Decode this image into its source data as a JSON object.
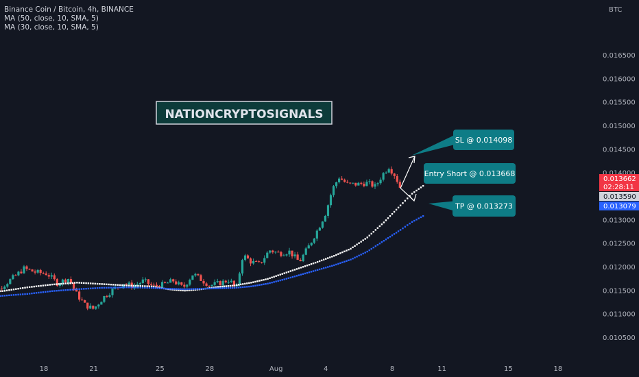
{
  "legend": {
    "symbol": "Binance Coin / Bitcoin, 4h, BINANCE",
    "ma1": "MA (50, close, 10, SMA, 5)",
    "ma2": "MA (30, close, 10, SMA, 5)"
  },
  "currency": "BTC",
  "watermark": "NATIONCRYPTOSIGNALS",
  "colors": {
    "background": "#131722",
    "up": "#26a69a",
    "down": "#ef5350",
    "ma50": "#ffffff",
    "ma30": "#2962ff",
    "annotation": "#0e7c86"
  },
  "chart_data": {
    "type": "candlestick",
    "y_range": [
      0.0103,
      0.017
    ],
    "y_ticks": [
      "0.016500",
      "0.016000",
      "0.015500",
      "0.015000",
      "0.014500",
      "0.014000",
      "0.013500",
      "0.013000",
      "0.012500",
      "0.012000",
      "0.011500",
      "0.011000",
      "0.010500"
    ],
    "x_ticks": [
      {
        "label": "18",
        "day": 18
      },
      {
        "label": "21",
        "day": 21
      },
      {
        "label": "25",
        "day": 25
      },
      {
        "label": "28",
        "day": 28
      },
      {
        "label": "Aug",
        "day": 32
      },
      {
        "label": "4",
        "day": 35
      },
      {
        "label": "8",
        "day": 39
      },
      {
        "label": "11",
        "day": 42
      },
      {
        "label": "15",
        "day": 46
      },
      {
        "label": "18",
        "day": 49
      }
    ],
    "price_path": [
      [
        14.3,
        0.0114
      ],
      [
        15.2,
        0.0115
      ],
      [
        16.2,
        0.01178
      ],
      [
        16.8,
        0.01196
      ],
      [
        17.5,
        0.01188
      ],
      [
        18.2,
        0.01185
      ],
      [
        18.8,
        0.01165
      ],
      [
        19.5,
        0.01175
      ],
      [
        20.0,
        0.0114
      ],
      [
        20.5,
        0.01118
      ],
      [
        21.0,
        0.0111
      ],
      [
        21.6,
        0.01135
      ],
      [
        22.2,
        0.01152
      ],
      [
        22.8,
        0.01165
      ],
      [
        23.4,
        0.01158
      ],
      [
        24.0,
        0.0117
      ],
      [
        24.6,
        0.01158
      ],
      [
        25.2,
        0.01162
      ],
      [
        25.8,
        0.0117
      ],
      [
        26.4,
        0.01155
      ],
      [
        27.0,
        0.01185
      ],
      [
        27.5,
        0.01172
      ],
      [
        28.0,
        0.0116
      ],
      [
        28.6,
        0.01165
      ],
      [
        29.2,
        0.01172
      ],
      [
        29.6,
        0.0115
      ],
      [
        30.0,
        0.01225
      ],
      [
        30.5,
        0.0121
      ],
      [
        31.0,
        0.01205
      ],
      [
        31.6,
        0.01235
      ],
      [
        32.2,
        0.01228
      ],
      [
        32.8,
        0.01232
      ],
      [
        33.4,
        0.0121
      ],
      [
        34.0,
        0.01245
      ],
      [
        34.6,
        0.01285
      ],
      [
        35.0,
        0.01315
      ],
      [
        35.4,
        0.01365
      ],
      [
        35.8,
        0.0139
      ],
      [
        36.3,
        0.01375
      ],
      [
        36.9,
        0.01375
      ],
      [
        37.5,
        0.01378
      ],
      [
        38.0,
        0.0137
      ],
      [
        38.4,
        0.01395
      ],
      [
        38.8,
        0.01412
      ],
      [
        39.2,
        0.01392
      ],
      [
        39.5,
        0.01366
      ]
    ],
    "series": [
      {
        "name": "MA (50, close, 10, SMA, 5)",
        "points": [
          [
            14.0,
            0.01145
          ],
          [
            15.5,
            0.01148
          ],
          [
            17.0,
            0.01156
          ],
          [
            18.5,
            0.01162
          ],
          [
            20.0,
            0.01166
          ],
          [
            21.5,
            0.01163
          ],
          [
            23.0,
            0.0116
          ],
          [
            24.5,
            0.01158
          ],
          [
            25.5,
            0.01152
          ],
          [
            26.5,
            0.01149
          ],
          [
            27.5,
            0.01152
          ],
          [
            28.5,
            0.01157
          ],
          [
            29.5,
            0.0116
          ],
          [
            30.5,
            0.01166
          ],
          [
            31.5,
            0.01174
          ],
          [
            32.5,
            0.01186
          ],
          [
            33.5,
            0.01198
          ],
          [
            34.5,
            0.0121
          ],
          [
            35.5,
            0.01223
          ],
          [
            36.5,
            0.01238
          ],
          [
            37.5,
            0.01262
          ],
          [
            38.5,
            0.01294
          ],
          [
            39.5,
            0.0133
          ],
          [
            40.2,
            0.01355
          ],
          [
            41.0,
            0.01375
          ]
        ]
      },
      {
        "name": "MA (30, close, 10, SMA, 5)",
        "points": [
          [
            14.0,
            0.01133
          ],
          [
            15.5,
            0.01138
          ],
          [
            17.0,
            0.01142
          ],
          [
            18.5,
            0.01148
          ],
          [
            20.0,
            0.01152
          ],
          [
            21.5,
            0.01155
          ],
          [
            23.0,
            0.01156
          ],
          [
            24.5,
            0.01155
          ],
          [
            25.5,
            0.01153
          ],
          [
            26.5,
            0.01152
          ],
          [
            27.5,
            0.01153
          ],
          [
            28.5,
            0.01154
          ],
          [
            29.5,
            0.01155
          ],
          [
            30.5,
            0.01158
          ],
          [
            31.5,
            0.01164
          ],
          [
            32.5,
            0.01173
          ],
          [
            33.5,
            0.01183
          ],
          [
            34.5,
            0.01193
          ],
          [
            35.5,
            0.01203
          ],
          [
            36.5,
            0.01215
          ],
          [
            37.5,
            0.01232
          ],
          [
            38.5,
            0.01255
          ],
          [
            39.5,
            0.01278
          ],
          [
            40.2,
            0.01295
          ],
          [
            41.0,
            0.0131
          ]
        ]
      }
    ],
    "annotations": [
      {
        "label": "SL @ 0.014098",
        "price": 0.014098
      },
      {
        "label": "Entry Short @ 0.013668",
        "price": 0.013668
      },
      {
        "label": "TP @ 0.013273",
        "price": 0.013273
      }
    ],
    "price_tags": [
      {
        "value": "0.013662",
        "sub": "02:28:11",
        "price": 0.013662,
        "color": "#f23645",
        "text_color": "#ffffff"
      },
      {
        "value": "0.013590",
        "sub": "",
        "price": 0.01359,
        "color": "#d1d4dc",
        "text_color": "#131722"
      },
      {
        "value": "0.013079",
        "sub": "",
        "price": 0.013079,
        "color": "#2962ff",
        "text_color": "#ffffff"
      }
    ]
  }
}
